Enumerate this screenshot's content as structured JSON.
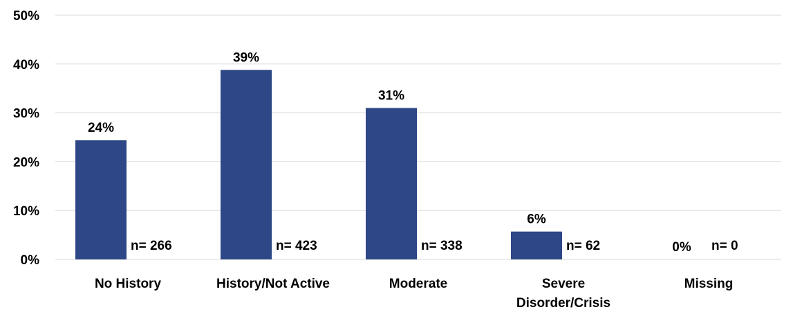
{
  "chart_data": {
    "type": "bar",
    "categories": [
      [
        "No History"
      ],
      [
        "History/Not Active"
      ],
      [
        "Moderate"
      ],
      [
        "Severe",
        "Disorder/Crisis"
      ],
      [
        "Missing"
      ]
    ],
    "values": [
      24.4,
      38.8,
      31.0,
      5.7,
      0
    ],
    "data_labels": [
      "24%",
      "39%",
      "31%",
      "6%",
      "0%"
    ],
    "n_labels": [
      "n= 266",
      "n= 423",
      "n= 338",
      "n= 62",
      "n= 0"
    ],
    "y_ticks": [
      0,
      10,
      20,
      30,
      40,
      50
    ],
    "y_tick_labels": [
      "0%",
      "10%",
      "20%",
      "30%",
      "40%",
      "50%"
    ],
    "ylim": [
      0,
      50
    ],
    "grid": true,
    "legend": "none",
    "colors": {
      "bar": "#2e4786",
      "grid": "#d9d9d9",
      "text": "#000000"
    }
  }
}
